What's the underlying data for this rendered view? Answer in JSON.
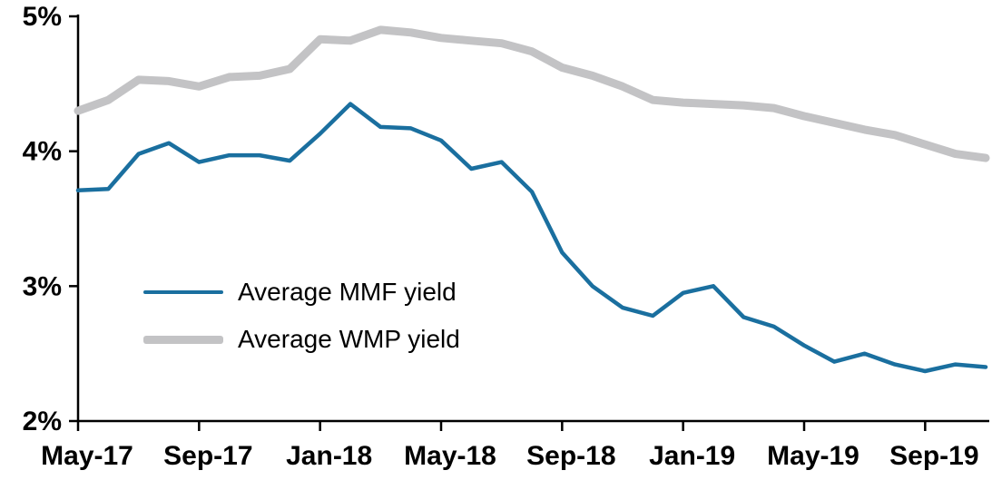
{
  "chart_data": {
    "type": "line",
    "title": "",
    "xlabel": "",
    "ylabel": "",
    "ylim": [
      2,
      5
    ],
    "grid": false,
    "legend_position": "inside-left",
    "x": [
      "May-17",
      "Jun-17",
      "Jul-17",
      "Aug-17",
      "Sep-17",
      "Oct-17",
      "Nov-17",
      "Dec-17",
      "Jan-18",
      "Feb-18",
      "Mar-18",
      "Apr-18",
      "May-18",
      "Jun-18",
      "Jul-18",
      "Aug-18",
      "Sep-18",
      "Oct-18",
      "Nov-18",
      "Dec-18",
      "Jan-19",
      "Feb-19",
      "Mar-19",
      "Apr-19",
      "May-19",
      "Jun-19",
      "Jul-19",
      "Aug-19",
      "Sep-19",
      "Oct-19",
      "Nov-19"
    ],
    "series": [
      {
        "name": "Average MMF yield",
        "color": "#1a6f9f",
        "values": [
          3.71,
          3.72,
          3.98,
          4.06,
          3.92,
          3.97,
          3.97,
          3.93,
          4.13,
          4.35,
          4.18,
          4.17,
          4.08,
          3.87,
          3.92,
          3.7,
          3.25,
          3.0,
          2.84,
          2.78,
          2.95,
          3.0,
          2.77,
          2.7,
          2.56,
          2.44,
          2.5,
          2.42,
          2.37,
          2.42,
          2.4
        ]
      },
      {
        "name": "Average WMP yield",
        "color": "#c3c3c5",
        "values": [
          4.3,
          4.38,
          4.53,
          4.52,
          4.48,
          4.55,
          4.56,
          4.61,
          4.83,
          4.82,
          4.9,
          4.88,
          4.84,
          4.82,
          4.8,
          4.74,
          4.62,
          4.56,
          4.48,
          4.38,
          4.36,
          4.35,
          4.34,
          4.32,
          4.26,
          4.21,
          4.16,
          4.12,
          4.05,
          3.98,
          3.95
        ]
      }
    ],
    "y_ticks": [
      {
        "value": 5,
        "label": "5%"
      },
      {
        "value": 4,
        "label": "4%"
      },
      {
        "value": 3,
        "label": "3%"
      },
      {
        "value": 2,
        "label": "2%"
      }
    ],
    "x_ticks": [
      {
        "index": 0,
        "label": "May-17"
      },
      {
        "index": 4,
        "label": "Sep-17"
      },
      {
        "index": 8,
        "label": "Jan-18"
      },
      {
        "index": 12,
        "label": "May-18"
      },
      {
        "index": 16,
        "label": "Sep-18"
      },
      {
        "index": 20,
        "label": "Jan-19"
      },
      {
        "index": 24,
        "label": "May-19"
      },
      {
        "index": 28,
        "label": "Sep-19"
      }
    ],
    "axis_color": "#000000"
  }
}
